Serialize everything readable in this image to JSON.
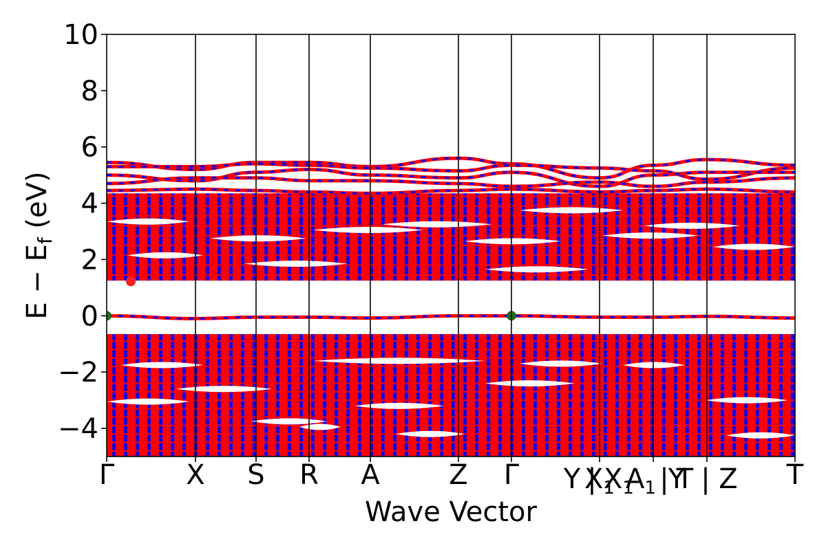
{
  "chart_data": {
    "type": "line",
    "title": "",
    "xlabel": "Wave Vector",
    "ylabel_main": "E − E",
    "ylabel_sub": "f",
    "ylabel_tail": " (eV)",
    "ylim": [
      -5,
      10
    ],
    "yticks": [
      {
        "value": -4,
        "label": "−4"
      },
      {
        "value": -2,
        "label": "−2"
      },
      {
        "value": 0,
        "label": "0"
      },
      {
        "value": 2,
        "label": "2"
      },
      {
        "value": 4,
        "label": "4"
      },
      {
        "value": 6,
        "label": "6"
      },
      {
        "value": 8,
        "label": "8"
      },
      {
        "value": 10,
        "label": "10"
      }
    ],
    "kpath": [
      {
        "label": "Γ",
        "x": 0.0
      },
      {
        "label": "X",
        "x": 0.129
      },
      {
        "label": "S",
        "x": 0.217
      },
      {
        "label": "R",
        "x": 0.294
      },
      {
        "label": "A",
        "x": 0.383
      },
      {
        "label": "Z",
        "x": 0.511
      },
      {
        "label": "Γ",
        "x": 0.588
      },
      {
        "label": "Y",
        "x": 0.676
      },
      {
        "label": "|",
        "x": 0.705
      },
      {
        "label": "X1",
        "x": 0.716
      },
      {
        "label": "X1",
        "x": 0.744
      },
      {
        "label": "A1",
        "x": 0.776
      },
      {
        "label": "|",
        "x": 0.81
      },
      {
        "label": "T",
        "x": 0.84
      },
      {
        "label": "Y",
        "x": 0.828
      },
      {
        "label": "|",
        "x": 0.87
      },
      {
        "label": "Z",
        "x": 0.903
      },
      {
        "label": "T",
        "x": 1.0
      }
    ],
    "vlines": [
      0.129,
      0.217,
      0.294,
      0.383,
      0.511,
      0.588,
      0.716,
      0.794,
      0.872
    ],
    "series": [
      {
        "name": "",
        "color": "#ff0000"
      },
      {
        "name": "",
        "color": "#0000ff"
      }
    ],
    "conduction_bands": [
      {
        "x": [
          0,
          0.129,
          0.217,
          0.294,
          0.383,
          0.511,
          0.588,
          0.716,
          0.794,
          0.872,
          1.0
        ],
        "y": [
          5.45,
          5.2,
          5.45,
          5.45,
          5.3,
          5.6,
          5.4,
          4.9,
          5.35,
          5.55,
          5.35
        ]
      },
      {
        "x": [
          0,
          0.129,
          0.217,
          0.294,
          0.383,
          0.511,
          0.588,
          0.716,
          0.794,
          0.872,
          1.0
        ],
        "y": [
          5.3,
          5.3,
          5.4,
          5.35,
          5.25,
          5.15,
          5.35,
          5.25,
          5.15,
          4.85,
          5.25
        ]
      },
      {
        "x": [
          0,
          0.129,
          0.217,
          0.294,
          0.383,
          0.511,
          0.588,
          0.716,
          0.794,
          0.872,
          1.0
        ],
        "y": [
          5.0,
          4.8,
          5.1,
          5.2,
          5.0,
          4.9,
          5.1,
          4.6,
          5.0,
          5.1,
          5.1
        ]
      },
      {
        "x": [
          0,
          0.129,
          0.217,
          0.294,
          0.383,
          0.511,
          0.588,
          0.716,
          0.794,
          0.872,
          1.0
        ],
        "y": [
          4.7,
          4.9,
          4.9,
          4.8,
          4.8,
          4.7,
          4.6,
          4.75,
          4.6,
          4.75,
          4.9
        ]
      },
      {
        "x": [
          0,
          0.129,
          0.217,
          0.294,
          0.383,
          0.511,
          0.588,
          0.716,
          0.794,
          0.872,
          1.0
        ],
        "y": [
          4.45,
          4.5,
          4.45,
          4.4,
          4.35,
          4.45,
          4.5,
          4.4,
          4.45,
          4.5,
          4.4
        ]
      }
    ],
    "valence_top_band": {
      "x": [
        0,
        0.129,
        0.217,
        0.294,
        0.383,
        0.511,
        0.588,
        0.716,
        0.794,
        0.872,
        1.0
      ],
      "y": [
        0.0,
        -0.1,
        -0.05,
        -0.05,
        -0.08,
        0.0,
        0.0,
        -0.05,
        -0.05,
        -0.02,
        -0.08
      ]
    },
    "upper_continuum": {
      "top": 4.35,
      "bottom": 1.25
    },
    "lower_continuum": {
      "top": -0.65,
      "bottom": -5.0
    },
    "markers": [
      {
        "x": 0.0,
        "y": 0.0,
        "color": "#1a6e1a"
      },
      {
        "x": 0.588,
        "y": 0.0,
        "color": "#1a6e1a"
      },
      {
        "x": 0.035,
        "y": 1.22,
        "color": "#ff2020"
      }
    ],
    "gaps_upper": [
      {
        "x1": 0.0,
        "x2": 0.12,
        "y": 3.35
      },
      {
        "x1": 0.15,
        "x2": 0.29,
        "y": 2.75
      },
      {
        "x1": 0.03,
        "x2": 0.14,
        "y": 2.15
      },
      {
        "x1": 0.3,
        "x2": 0.46,
        "y": 3.05
      },
      {
        "x1": 0.4,
        "x2": 0.56,
        "y": 3.25
      },
      {
        "x1": 0.52,
        "x2": 0.66,
        "y": 2.65
      },
      {
        "x1": 0.6,
        "x2": 0.75,
        "y": 3.75
      },
      {
        "x1": 0.72,
        "x2": 0.86,
        "y": 2.85
      },
      {
        "x1": 0.78,
        "x2": 0.92,
        "y": 3.2
      },
      {
        "x1": 0.88,
        "x2": 1.0,
        "y": 2.45
      },
      {
        "x1": 0.2,
        "x2": 0.35,
        "y": 1.85
      },
      {
        "x1": 0.55,
        "x2": 0.7,
        "y": 1.65
      }
    ],
    "gaps_lower": [
      {
        "x1": 0.02,
        "x2": 0.14,
        "y": -1.75
      },
      {
        "x1": 0.0,
        "x2": 0.12,
        "y": -3.05
      },
      {
        "x1": 0.3,
        "x2": 0.55,
        "y": -1.6
      },
      {
        "x1": 0.36,
        "x2": 0.49,
        "y": -3.2
      },
      {
        "x1": 0.42,
        "x2": 0.52,
        "y": -4.2
      },
      {
        "x1": 0.21,
        "x2": 0.32,
        "y": -3.75
      },
      {
        "x1": 0.28,
        "x2": 0.34,
        "y": -3.95
      },
      {
        "x1": 0.6,
        "x2": 0.72,
        "y": -1.7
      },
      {
        "x1": 0.75,
        "x2": 0.84,
        "y": -1.75
      },
      {
        "x1": 0.87,
        "x2": 0.99,
        "y": -3.0
      },
      {
        "x1": 0.9,
        "x2": 1.0,
        "y": -4.25
      },
      {
        "x1": 0.55,
        "x2": 0.68,
        "y": -2.4
      },
      {
        "x1": 0.1,
        "x2": 0.24,
        "y": -2.6
      }
    ]
  }
}
